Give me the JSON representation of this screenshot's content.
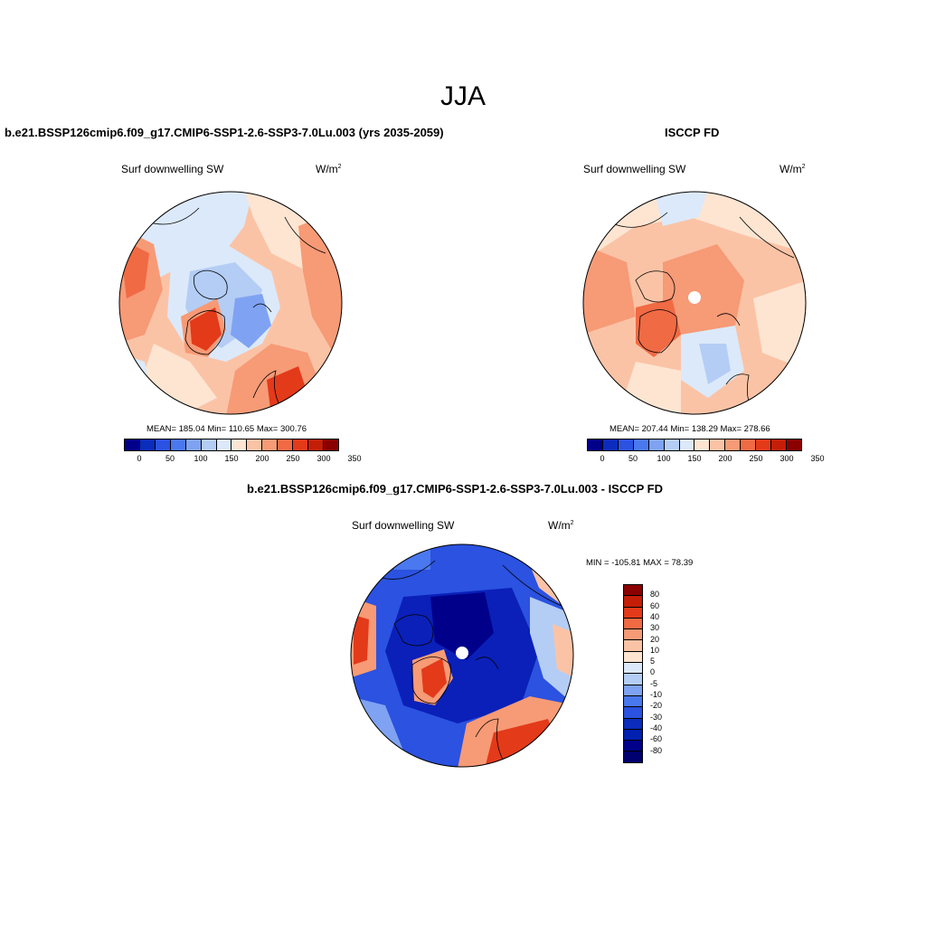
{
  "season": "JJA",
  "panels": [
    {
      "title": "b.e21.BSSP126cmip6.f09_g17.CMIP6-SSP1-2.6-SSP3-7.0Lu.003 (yrs 2035-2059)",
      "variable": "Surf downwelling SW",
      "units": "W/m",
      "units_exp": "2",
      "stats": "MEAN= 185.04  Min= 110.65  Max= 300.76"
    },
    {
      "title": "ISCCP FD",
      "variable": "Surf downwelling SW",
      "units": "W/m",
      "units_exp": "2",
      "stats": "MEAN= 207.44  Min= 138.29  Max= 278.66"
    },
    {
      "title": "b.e21.BSSP126cmip6.f09_g17.CMIP6-SSP1-2.6-SSP3-7.0Lu.003 - ISCCP FD",
      "variable": "Surf downwelling SW",
      "units": "W/m",
      "units_exp": "2",
      "stats": "MIN = -105.81 MAX =  78.39"
    }
  ],
  "abs_colorbar": {
    "colors": [
      "#00008b",
      "#0b2cbc",
      "#2b52e0",
      "#4a78ee",
      "#7fa3f2",
      "#b4cdf5",
      "#dce9fa",
      "#fde5d2",
      "#fbc3a6",
      "#f79a76",
      "#f06a44",
      "#e33a1a",
      "#c41e08",
      "#8b0000"
    ],
    "labels": [
      "0",
      "50",
      "100",
      "150",
      "200",
      "250",
      "300",
      "350"
    ]
  },
  "diff_colorbar": {
    "colors": [
      "#8b0000",
      "#c41e08",
      "#e33a1a",
      "#f06a44",
      "#f79a76",
      "#fbc3a6",
      "#fde5d2",
      "#dce9fa",
      "#b4cdf5",
      "#7fa3f2",
      "#4a78ee",
      "#2b52e0",
      "#0b2cbc",
      "#0020b0",
      "#00008b",
      "#000070"
    ],
    "labels": [
      "80",
      "60",
      "40",
      "30",
      "20",
      "10",
      "5",
      "0",
      "-5",
      "-10",
      "-20",
      "-30",
      "-40",
      "-60",
      "-80"
    ]
  },
  "map_colors": {
    "deep_blue": "#0a20b8",
    "blue": "#2b52e0",
    "mid_blue": "#4a78ee",
    "light_blue": "#b4cdf5",
    "pale_blue": "#dce9fa",
    "cream": "#fde5d2",
    "peach": "#fbc3a6",
    "salmon": "#f79a76",
    "orange": "#f06a44",
    "red": "#e33a1a"
  }
}
